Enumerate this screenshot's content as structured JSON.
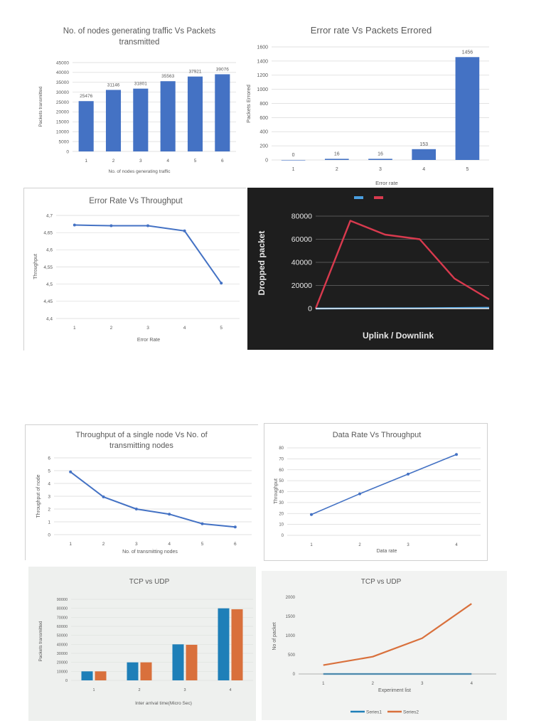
{
  "colors": {
    "blue": "#4472c4",
    "excel_blue": "#4472c4",
    "dark_bg": "#1e1e1e",
    "dark_red": "#d83a4e",
    "dark_blue": "#4a9fe0",
    "photo_bg": "#eef0ee",
    "photo_blue": "#1e7fb8",
    "photo_orange": "#d9703c"
  },
  "chart_data": [
    {
      "id": "c1",
      "type": "bar",
      "title": "No. of nodes generating traffic Vs Packets transmitted",
      "title_lines": [
        "No. of nodes generating traffic Vs Packets",
        "transmitted"
      ],
      "categories": [
        "1",
        "2",
        "3",
        "4",
        "5",
        "6"
      ],
      "values": [
        25476,
        31146,
        31801,
        35563,
        37921,
        39076
      ],
      "data_labels": [
        "25476",
        "31146",
        "31801",
        "35563",
        "37921",
        "39076"
      ],
      "xlabel": "No. of nodes generating traffic",
      "ylabel": "Packets transmitted",
      "ylim": [
        0,
        45000
      ],
      "yticks": [
        "0",
        "5000",
        "10000",
        "15000",
        "20000",
        "25000",
        "30000",
        "35000",
        "40000",
        "45000"
      ],
      "grid": true
    },
    {
      "id": "c2",
      "type": "bar",
      "title": "Error rate Vs Packets Errored",
      "categories": [
        "1",
        "2",
        "3",
        "4",
        "5"
      ],
      "values": [
        0,
        16,
        16,
        153,
        1456
      ],
      "data_labels": [
        "0",
        "16",
        "16",
        "153",
        "1456"
      ],
      "xlabel": "Error rate",
      "ylabel": "Packets Errored",
      "ylim": [
        0,
        1600
      ],
      "yticks": [
        "0",
        "200",
        "400",
        "600",
        "800",
        "1000",
        "1200",
        "1400",
        "1600"
      ],
      "grid": true
    },
    {
      "id": "c3",
      "type": "line",
      "title": "Error Rate Vs Throughput",
      "x": [
        "1",
        "2",
        "3",
        "4",
        "5"
      ],
      "values": [
        4.672,
        4.67,
        4.67,
        4.655,
        4.503
      ],
      "xlabel": "Error Rate",
      "ylabel": "Throughput",
      "ylim": [
        4.4,
        4.7
      ],
      "yticks": [
        "4,4",
        "4,45",
        "4,5",
        "4,55",
        "4,6",
        "4,65",
        "4,7"
      ],
      "grid": true
    },
    {
      "id": "c4",
      "type": "line",
      "title": "",
      "xlabel": "Uplink / Downlink",
      "ylabel": "Dropped packet",
      "ylim": [
        0,
        80000
      ],
      "yticks": [
        "0",
        "20000",
        "40000",
        "60000",
        "80000"
      ],
      "series": [
        {
          "values": [
            0,
            76000,
            64000,
            60000,
            26000,
            8000
          ],
          "color": "#d83a4e"
        },
        {
          "values": [
            0,
            100,
            200,
            300,
            500,
            700
          ],
          "color": "#4a9fe0"
        }
      ],
      "legend": "top-center",
      "grid": true
    },
    {
      "id": "c5",
      "type": "line",
      "title": "Throughput of a single node Vs No. of transmitting nodes",
      "title_lines": [
        "Throughput of a single node Vs No. of",
        "transmitting nodes"
      ],
      "x": [
        "1",
        "2",
        "3",
        "4",
        "5",
        "6"
      ],
      "values": [
        4.9,
        2.95,
        2.0,
        1.6,
        0.85,
        0.6
      ],
      "xlabel": "No. of transmitting nodes",
      "ylabel": "Throughput of node",
      "ylim": [
        0,
        6
      ],
      "yticks": [
        "0",
        "1",
        "2",
        "3",
        "4",
        "5",
        "6"
      ],
      "grid": true
    },
    {
      "id": "c6",
      "type": "line",
      "title": "Data Rate Vs Throughput",
      "x": [
        "1",
        "2",
        "3",
        "4"
      ],
      "values": [
        19,
        38,
        56,
        74
      ],
      "xlabel": "Data rate",
      "ylabel": "Throughput",
      "ylim": [
        0,
        80
      ],
      "yticks": [
        "0",
        "10",
        "20",
        "30",
        "40",
        "50",
        "60",
        "70",
        "80"
      ],
      "grid": true
    },
    {
      "id": "c7",
      "type": "bar",
      "title": "TCP vs UDP",
      "categories": [
        "1",
        "2",
        "3",
        "4"
      ],
      "series": [
        {
          "values": [
            10000,
            20000,
            40000,
            80000
          ],
          "color": "#1e7fb8"
        },
        {
          "values": [
            10000,
            20000,
            39500,
            79000
          ],
          "color": "#d9703c"
        }
      ],
      "xlabel": "Inter arrival time(Micro Sec)",
      "ylabel": "Packets transmitted",
      "ylim": [
        0,
        90000
      ],
      "yticks": [
        "0",
        "10000",
        "20000",
        "30000",
        "40000",
        "50000",
        "60000",
        "70000",
        "80000",
        "90000"
      ],
      "grid": true
    },
    {
      "id": "c8",
      "type": "line",
      "title": "TCP vs UDP",
      "x": [
        "1",
        "2",
        "3",
        "4"
      ],
      "series": [
        {
          "name": "Series1",
          "values": [
            0,
            0,
            0,
            0
          ],
          "color": "#1e7fb8"
        },
        {
          "name": "Series2",
          "values": [
            230,
            450,
            930,
            1830
          ],
          "color": "#d9703c"
        }
      ],
      "xlabel": "Experiment list",
      "ylabel": "No of packet",
      "ylim": [
        0,
        2000
      ],
      "yticks": [
        "0",
        "500",
        "1000",
        "1500",
        "2000"
      ],
      "legend": "bottom",
      "grid": false
    }
  ]
}
